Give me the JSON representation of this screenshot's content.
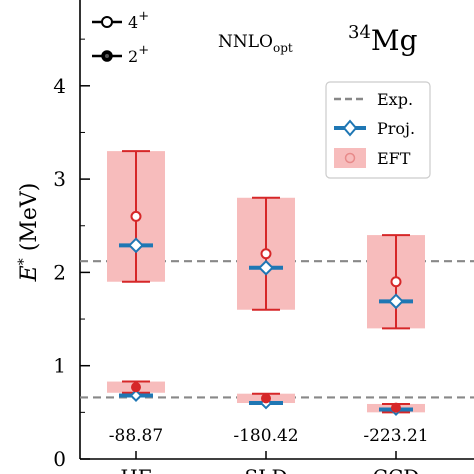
{
  "chart_data": {
    "type": "scatter",
    "ylabel": "E* (MeV)",
    "ylim": [
      0,
      5
    ],
    "yticks": [
      0,
      1,
      2,
      3,
      4
    ],
    "categories": [
      "HF",
      "SLD",
      "CCD"
    ],
    "energy_labels": [
      "-88.87",
      "-180.42",
      "-223.21"
    ],
    "annotations": {
      "method": "NNLO",
      "method_sub": "opt",
      "nucleus_mass": "34",
      "nucleus_symbol": "Mg"
    },
    "exp_lines": [
      2.12,
      0.66
    ],
    "legend_spin": [
      {
        "label": "4",
        "sup": "+",
        "marker": "open"
      },
      {
        "label": "2",
        "sup": "+",
        "marker": "filled"
      }
    ],
    "legend_methods": [
      "Exp.",
      "Proj.",
      "EFT"
    ],
    "series": [
      {
        "name": "4+",
        "eft_center": [
          2.6,
          2.2,
          1.9
        ],
        "eft_low": [
          1.9,
          1.6,
          1.4
        ],
        "eft_high": [
          3.3,
          2.8,
          2.4
        ],
        "proj": [
          2.29,
          2.05,
          1.69
        ]
      },
      {
        "name": "2+",
        "eft_center": [
          0.77,
          0.65,
          0.55
        ],
        "eft_low": [
          0.71,
          0.6,
          0.5
        ],
        "eft_high": [
          0.83,
          0.7,
          0.59
        ],
        "proj": [
          0.68,
          0.6,
          0.53
        ]
      }
    ],
    "colors": {
      "eft": "#d62728",
      "eft_band": "#f7bcbc",
      "proj": "#1f77b4",
      "exp": "#888888"
    }
  }
}
